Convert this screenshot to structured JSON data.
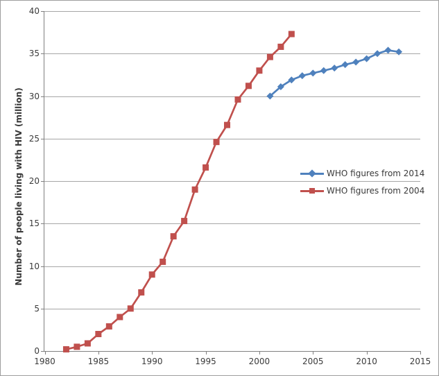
{
  "chart_data": {
    "type": "line",
    "title": "",
    "xlabel": "",
    "ylabel": "Number of people living with HIV (million)",
    "xlim": [
      1980,
      2015
    ],
    "ylim": [
      0,
      40
    ],
    "x_ticks": [
      1980,
      1985,
      1990,
      1995,
      2000,
      2005,
      2010,
      2015
    ],
    "y_ticks": [
      0,
      5,
      10,
      15,
      20,
      25,
      30,
      35,
      40
    ],
    "grid": "horizontal",
    "grid_color": "#a6a6a6",
    "axis_color": "#7f7f7f",
    "legend_position": "middle-right",
    "series": [
      {
        "name": "WHO figures from 2014",
        "color": "#4f81bd",
        "marker": "diamond",
        "x": [
          2001,
          2002,
          2003,
          2004,
          2005,
          2006,
          2007,
          2008,
          2009,
          2010,
          2011,
          2012,
          2013
        ],
        "values": [
          30.0,
          31.1,
          31.9,
          32.4,
          32.7,
          33.0,
          33.3,
          33.7,
          34.0,
          34.4,
          35.0,
          35.4,
          35.2
        ]
      },
      {
        "name": "WHO figures from 2004",
        "color": "#c0504d",
        "marker": "square",
        "x": [
          1982,
          1983,
          1984,
          1985,
          1986,
          1987,
          1988,
          1989,
          1990,
          1991,
          1992,
          1993,
          1994,
          1995,
          1996,
          1997,
          1998,
          1999,
          2000,
          2001,
          2002,
          2003
        ],
        "values": [
          0.2,
          0.5,
          0.9,
          2.0,
          2.9,
          4.0,
          5.0,
          6.9,
          9.0,
          10.5,
          13.5,
          15.3,
          19.0,
          21.6,
          24.6,
          26.6,
          29.6,
          31.2,
          33.0,
          34.6,
          35.8,
          37.3
        ]
      }
    ]
  }
}
